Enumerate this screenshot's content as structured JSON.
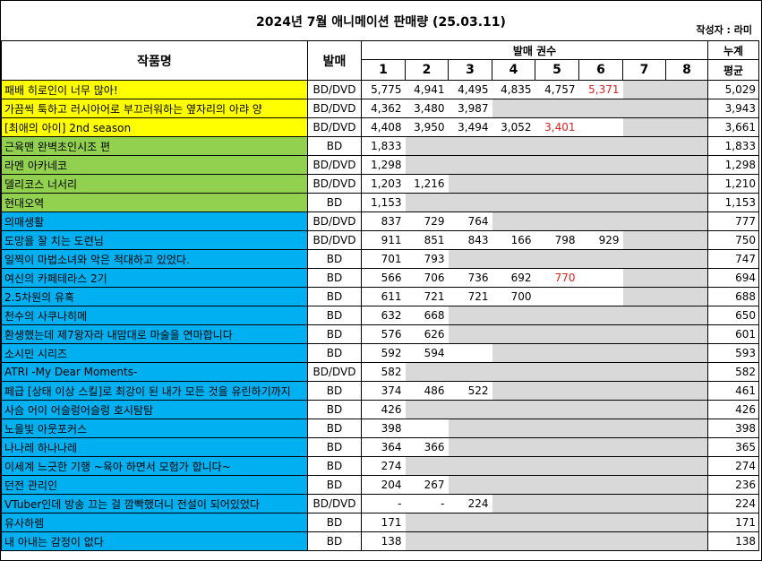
{
  "header": {
    "title": "2024년 7월 애니메이션 판매량 (25.03.11)",
    "author": "작성자 : 라미"
  },
  "columns": {
    "title": "작품명",
    "format": "발매",
    "volumes_group": "발매 권수",
    "volumes": [
      "1",
      "2",
      "3",
      "4",
      "5",
      "6",
      "7",
      "8"
    ],
    "average_line1": "누계",
    "average_line2": "평균"
  },
  "colors": {
    "yellow": "#ffff00",
    "green": "#92d050",
    "blue": "#00b0f0",
    "empty": "#d9d9d9",
    "red": "#e02020"
  },
  "rows": [
    {
      "title": "패배 히로인이 너무 많아!",
      "format": "BD/DVD",
      "values": [
        "5,775",
        "4,941",
        "4,495",
        "4,835",
        "4,757",
        "5,371"
      ],
      "avg": "5,029",
      "group": "y",
      "red": [
        5
      ],
      "white": 0
    },
    {
      "title": "가끔씩 툭하고 러시아어로 부끄러워하는 옆자리의 아랴 양",
      "format": "BD/DVD",
      "values": [
        "4,362",
        "3,480",
        "3,987"
      ],
      "avg": "3,943",
      "group": "y",
      "red": [],
      "white": 0
    },
    {
      "title": "[최애의 아이] 2nd season",
      "format": "BD/DVD",
      "values": [
        "4,408",
        "3,950",
        "3,494",
        "3,052",
        "3,401"
      ],
      "avg": "3,661",
      "group": "y",
      "red": [
        4
      ],
      "white": 1
    },
    {
      "title": "근육맨 완벽초인시조 편",
      "format": "BD",
      "values": [
        "1,833"
      ],
      "avg": "1,833",
      "group": "g",
      "red": [],
      "white": 0
    },
    {
      "title": "라멘 아카네코",
      "format": "BD/DVD",
      "values": [
        "1,298"
      ],
      "avg": "1,298",
      "group": "g",
      "red": [],
      "white": 0
    },
    {
      "title": "델리코스 너서리",
      "format": "BD/DVD",
      "values": [
        "1,203",
        "1,216"
      ],
      "avg": "1,210",
      "group": "g",
      "red": [],
      "white": 0
    },
    {
      "title": "현대오역",
      "format": "BD",
      "values": [
        "1,153"
      ],
      "avg": "1,153",
      "group": "g",
      "red": [],
      "white": 0
    },
    {
      "title": "의매생활",
      "format": "BD/DVD",
      "values": [
        "837",
        "729",
        "764"
      ],
      "avg": "777",
      "group": "b",
      "red": [],
      "white": 0
    },
    {
      "title": "도망을 잘 치는 도련님",
      "format": "BD/DVD",
      "values": [
        "911",
        "851",
        "843",
        "166",
        "798",
        "929"
      ],
      "avg": "750",
      "group": "b",
      "red": [],
      "white": 0
    },
    {
      "title": "일찍이 마법소녀와 악은 적대하고 있었다.",
      "format": "BD",
      "values": [
        "701",
        "793"
      ],
      "avg": "747",
      "group": "b",
      "red": [],
      "white": 0
    },
    {
      "title": "여신의 카페테라스 2기",
      "format": "BD",
      "values": [
        "566",
        "706",
        "736",
        "692",
        "770"
      ],
      "avg": "694",
      "group": "b",
      "red": [
        4
      ],
      "white": 1
    },
    {
      "title": "2.5차원의 유혹",
      "format": "BD",
      "values": [
        "611",
        "721",
        "721",
        "700"
      ],
      "avg": "688",
      "group": "b",
      "red": [],
      "white": 2
    },
    {
      "title": "천수의 사쿠나히메",
      "format": "BD",
      "values": [
        "632",
        "668"
      ],
      "avg": "650",
      "group": "b",
      "red": [],
      "white": 0
    },
    {
      "title": "환생했는데 제7왕자라 내맘대로 마술을 연마합니다",
      "format": "BD",
      "values": [
        "576",
        "626"
      ],
      "avg": "601",
      "group": "b",
      "red": [],
      "white": 0
    },
    {
      "title": "소시민 시리즈",
      "format": "BD",
      "values": [
        "592",
        "594"
      ],
      "avg": "593",
      "group": "b",
      "red": [],
      "white": 1
    },
    {
      "title": "ATRI -My Dear Moments-",
      "format": "BD/DVD",
      "values": [
        "582"
      ],
      "avg": "582",
      "group": "b",
      "red": [],
      "white": 0
    },
    {
      "title": "페급 [상태 이상 스킬]로 최강이 된 내가 모든 것을 유린하기까지",
      "format": "BD",
      "values": [
        "374",
        "486",
        "522"
      ],
      "avg": "461",
      "group": "b",
      "red": [],
      "white": 0
    },
    {
      "title": "사슴 어이 어슬렁어슬렁 호시탐탐",
      "format": "BD",
      "values": [
        "426"
      ],
      "avg": "426",
      "group": "b",
      "red": [],
      "white": 0
    },
    {
      "title": "노을빛 아웃포커스",
      "format": "BD",
      "values": [
        "398"
      ],
      "avg": "398",
      "group": "b",
      "red": [],
      "white": 1
    },
    {
      "title": "나나레 하나나레",
      "format": "BD",
      "values": [
        "364",
        "366"
      ],
      "avg": "365",
      "group": "b",
      "red": [],
      "white": 0
    },
    {
      "title": "이세계 느긋한 기행 ~육아 하면서 모험가 합니다~",
      "format": "BD",
      "values": [
        "274"
      ],
      "avg": "274",
      "group": "b",
      "red": [],
      "white": 0
    },
    {
      "title": "던전 관리인",
      "format": "BD",
      "values": [
        "204",
        "267"
      ],
      "avg": "236",
      "group": "b",
      "red": [],
      "white": 0
    },
    {
      "title": "VTuber인데 방송 끄는 걸 깜빡했더니 전설이 되어있었다",
      "format": "BD/DVD",
      "values": [
        "-",
        "-",
        "224"
      ],
      "avg": "224",
      "group": "b",
      "red": [],
      "white": 0
    },
    {
      "title": "유사하렘",
      "format": "BD",
      "values": [
        "171"
      ],
      "avg": "171",
      "group": "b",
      "red": [],
      "white": 0
    },
    {
      "title": "내 아내는 감정이 없다",
      "format": "BD",
      "values": [
        "138"
      ],
      "avg": "138",
      "group": "b",
      "red": [],
      "white": 0
    }
  ]
}
